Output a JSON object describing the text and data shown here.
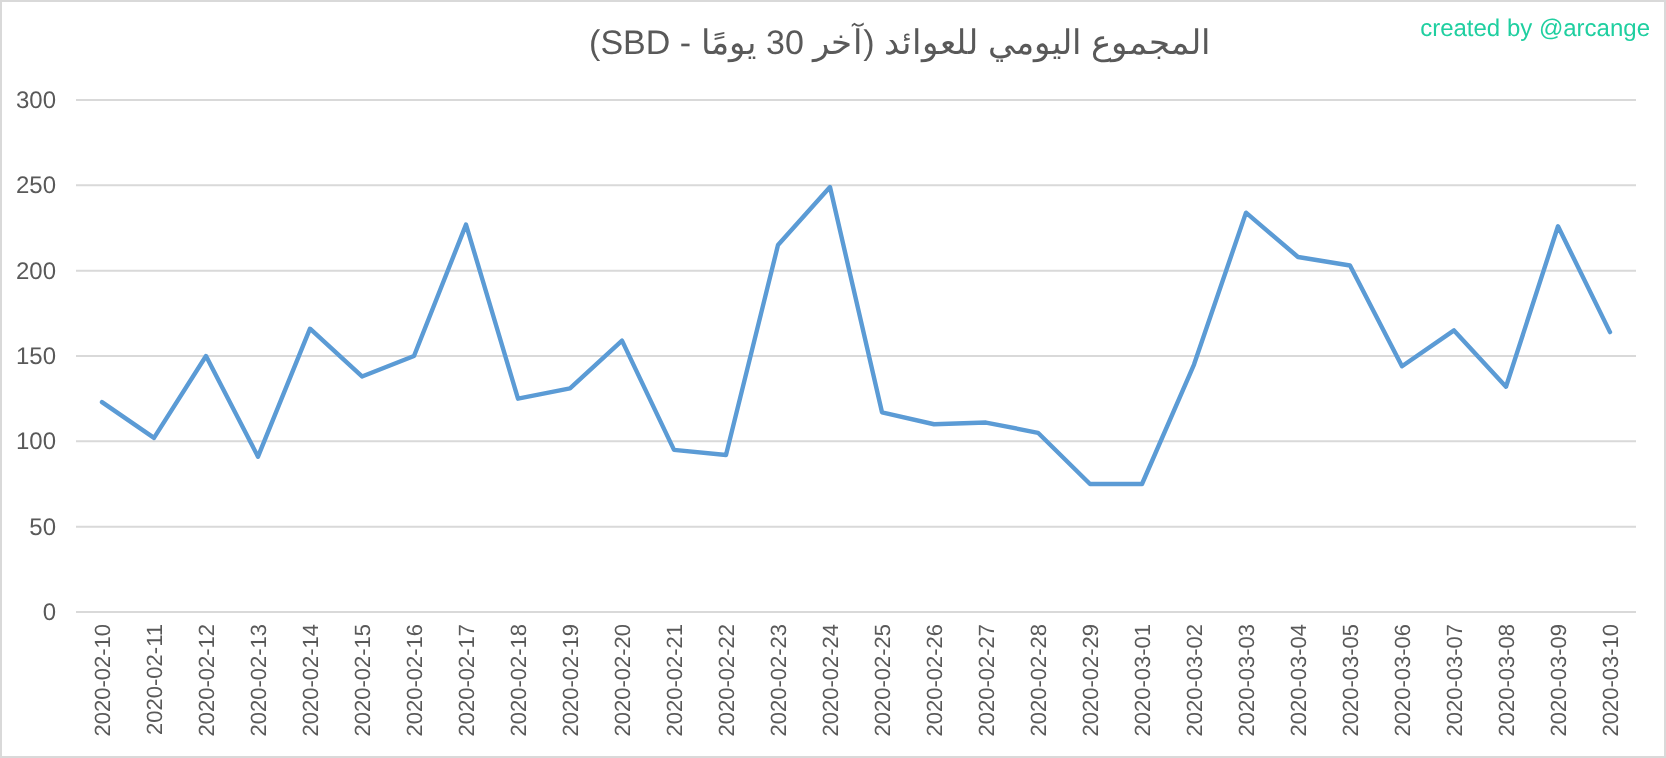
{
  "chart_data": {
    "type": "line",
    "title": "المجموع اليومي للعوائد (آخر 30 يومًا - SBD)",
    "annotations": [
      "created by @arcange"
    ],
    "categories": [
      "2020-02-10",
      "2020-02-11",
      "2020-02-12",
      "2020-02-13",
      "2020-02-14",
      "2020-02-15",
      "2020-02-16",
      "2020-02-17",
      "2020-02-18",
      "2020-02-19",
      "2020-02-20",
      "2020-02-21",
      "2020-02-22",
      "2020-02-23",
      "2020-02-24",
      "2020-02-25",
      "2020-02-26",
      "2020-02-27",
      "2020-02-28",
      "2020-02-29",
      "2020-03-01",
      "2020-03-02",
      "2020-03-03",
      "2020-03-04",
      "2020-03-05",
      "2020-03-06",
      "2020-03-07",
      "2020-03-08",
      "2020-03-09",
      "2020-03-10"
    ],
    "values": [
      123,
      102,
      150,
      91,
      166,
      138,
      150,
      227,
      125,
      131,
      159,
      95,
      92,
      215,
      249,
      117,
      110,
      111,
      105,
      75,
      75,
      145,
      234,
      208,
      203,
      144,
      165,
      132,
      226,
      164
    ],
    "color": "#5b9bd5",
    "line_style": "solid",
    "ylim": [
      0,
      300
    ],
    "yticks": [
      0,
      50,
      100,
      150,
      200,
      250,
      300
    ],
    "grid": "y"
  }
}
